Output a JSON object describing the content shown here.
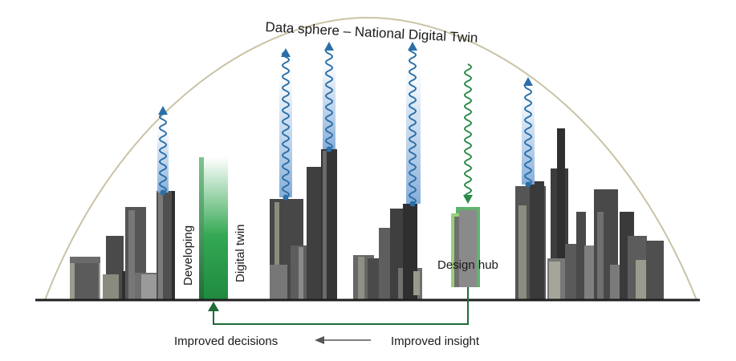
{
  "diagram": {
    "title": "Data sphere – National Digital Twin",
    "labels": {
      "developing": "Developing",
      "digital_twin": "Digital twin",
      "design_hub": "Design hub",
      "improved_decisions": "Improved decisions",
      "improved_insight": "Improved insight"
    },
    "colors": {
      "dome": "#c9c3a6",
      "ground": "#1f1f1f",
      "data_wave": "#2a6fa8",
      "data_beam": "#a9c6e6",
      "green_flow": "#2a8a49",
      "feedback_arrow": "#1f6b3a",
      "building_dark": "#3c3c3c",
      "building_mid": "#5a5a5a",
      "building_light": "#8a8a8a"
    },
    "icons": [
      "upward-data-wave-icon",
      "downward-data-wave-icon",
      "left-arrow-icon"
    ]
  }
}
